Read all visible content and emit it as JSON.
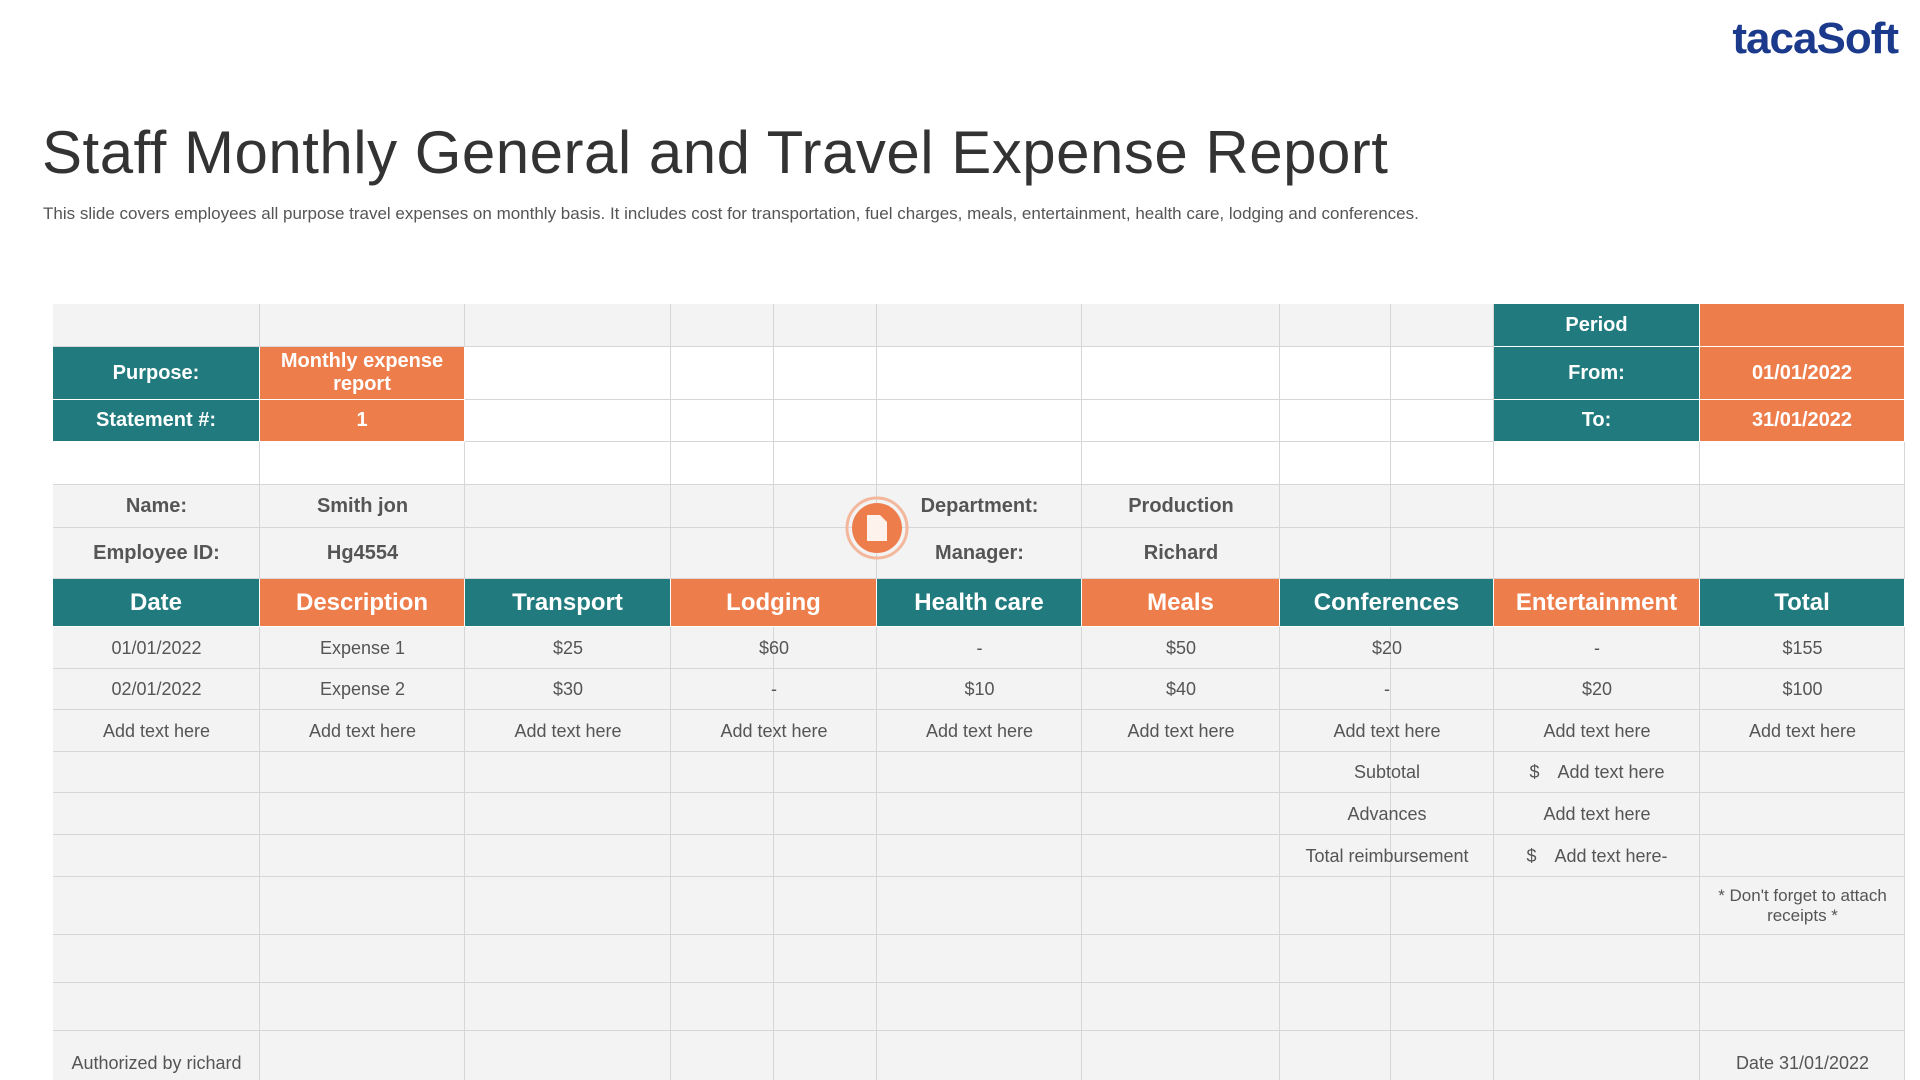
{
  "brand": "tacaSoft",
  "title": "Staff Monthly General and Travel Expense Report",
  "subtitle": "This slide covers employees all purpose travel expenses on monthly basis. It includes cost for transportation, fuel charges, meals, entertainment, health care, lodging and conferences.",
  "period": {
    "label": "Period",
    "from_label": "From:",
    "from": "01/01/2022",
    "to_label": "To:",
    "to": "31/01/2022"
  },
  "purpose": {
    "label": "Purpose:",
    "value": "Monthly expense report"
  },
  "statement": {
    "label": "Statement #:",
    "value": "1"
  },
  "employee": {
    "name_label": "Name:",
    "name": "Smith jon",
    "id_label": "Employee ID:",
    "id": "Hg4554",
    "department_label": "Department:",
    "department": "Production",
    "manager_label": "Manager:",
    "manager": "Richard"
  },
  "table": {
    "columns": [
      "Date",
      "Description",
      "Transport",
      "Lodging",
      "Health care",
      "Meals",
      "Conferences",
      "Entertainment",
      "Total"
    ],
    "rows": [
      [
        "01/01/2022",
        "Expense 1",
        "$25",
        "$60",
        "-",
        "$50",
        "$20",
        "-",
        "$155"
      ],
      [
        "02/01/2022",
        "Expense 2",
        "$30",
        "-",
        "$10",
        "$40",
        "-",
        "$20",
        "$100"
      ],
      [
        "Add text here",
        "Add text here",
        "Add text here",
        "Add text here",
        "Add text here",
        "Add text here",
        "Add text here",
        "Add text here",
        "Add text here"
      ]
    ]
  },
  "summary": [
    {
      "label": "Subtotal",
      "currency": "$",
      "value": "Add text here"
    },
    {
      "label": "Advances",
      "value": "Add text here"
    },
    {
      "label": "Total reimbursement",
      "currency": "$",
      "value": "Add text here-"
    }
  ],
  "note": "* Don't forget to attach receipts *",
  "footer": {
    "authorized": "Authorized by richard",
    "date": "Date 31/01/2022"
  }
}
